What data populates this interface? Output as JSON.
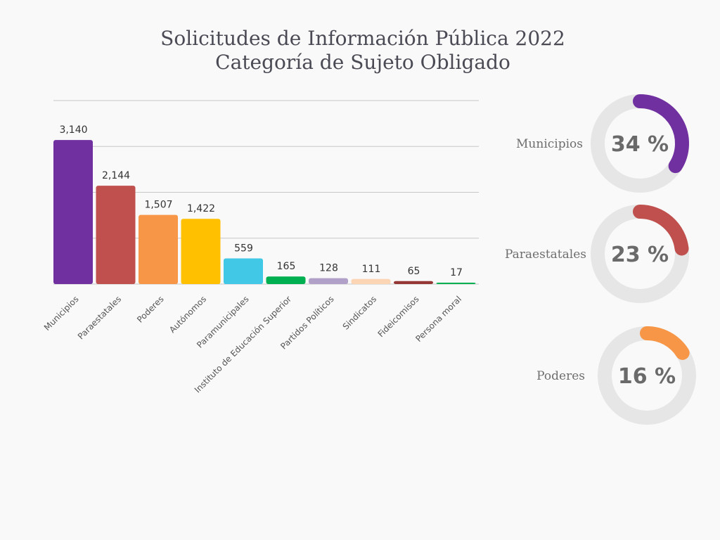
{
  "chart_data": [
    {
      "type": "bar",
      "title": "Solicitudes de Información Pública 2022",
      "subtitle": "Categoría de Sujeto Obligado",
      "xlabel": "",
      "ylabel": "",
      "ylim": [
        0,
        4000
      ],
      "grid": true,
      "categories": [
        "Municipios",
        "Paraestatales",
        "Poderes",
        "Autónomos",
        "Paramunicipales",
        "Instituto de Educación Superior",
        "Partidos Políticos",
        "Sindicatos",
        "Fideicomisos",
        "Persona moral"
      ],
      "values": [
        3140,
        2144,
        1507,
        1422,
        559,
        165,
        128,
        111,
        65,
        17
      ],
      "value_labels": [
        "3,140",
        "2,144",
        "1,507",
        "1,422",
        "559",
        "165",
        "128",
        "111",
        "65",
        "17"
      ],
      "colors": [
        "#7030a0",
        "#c0504d",
        "#f79646",
        "#ffc000",
        "#41c8e6",
        "#00b050",
        "#b1a0c7",
        "#fcd5b4",
        "#953734",
        "#00b050"
      ]
    },
    {
      "type": "pie",
      "variant": "donut",
      "items": [
        {
          "label": "Municipios",
          "value": 34,
          "display": "34 %",
          "color": "#7030a0"
        },
        {
          "label": "Paraestatales",
          "value": 23,
          "display": "23 %",
          "color": "#c0504d"
        },
        {
          "label": "Poderes",
          "value": 16,
          "display": "16 %",
          "color": "#f79646"
        }
      ],
      "track_color": "#e6e6e6"
    }
  ]
}
